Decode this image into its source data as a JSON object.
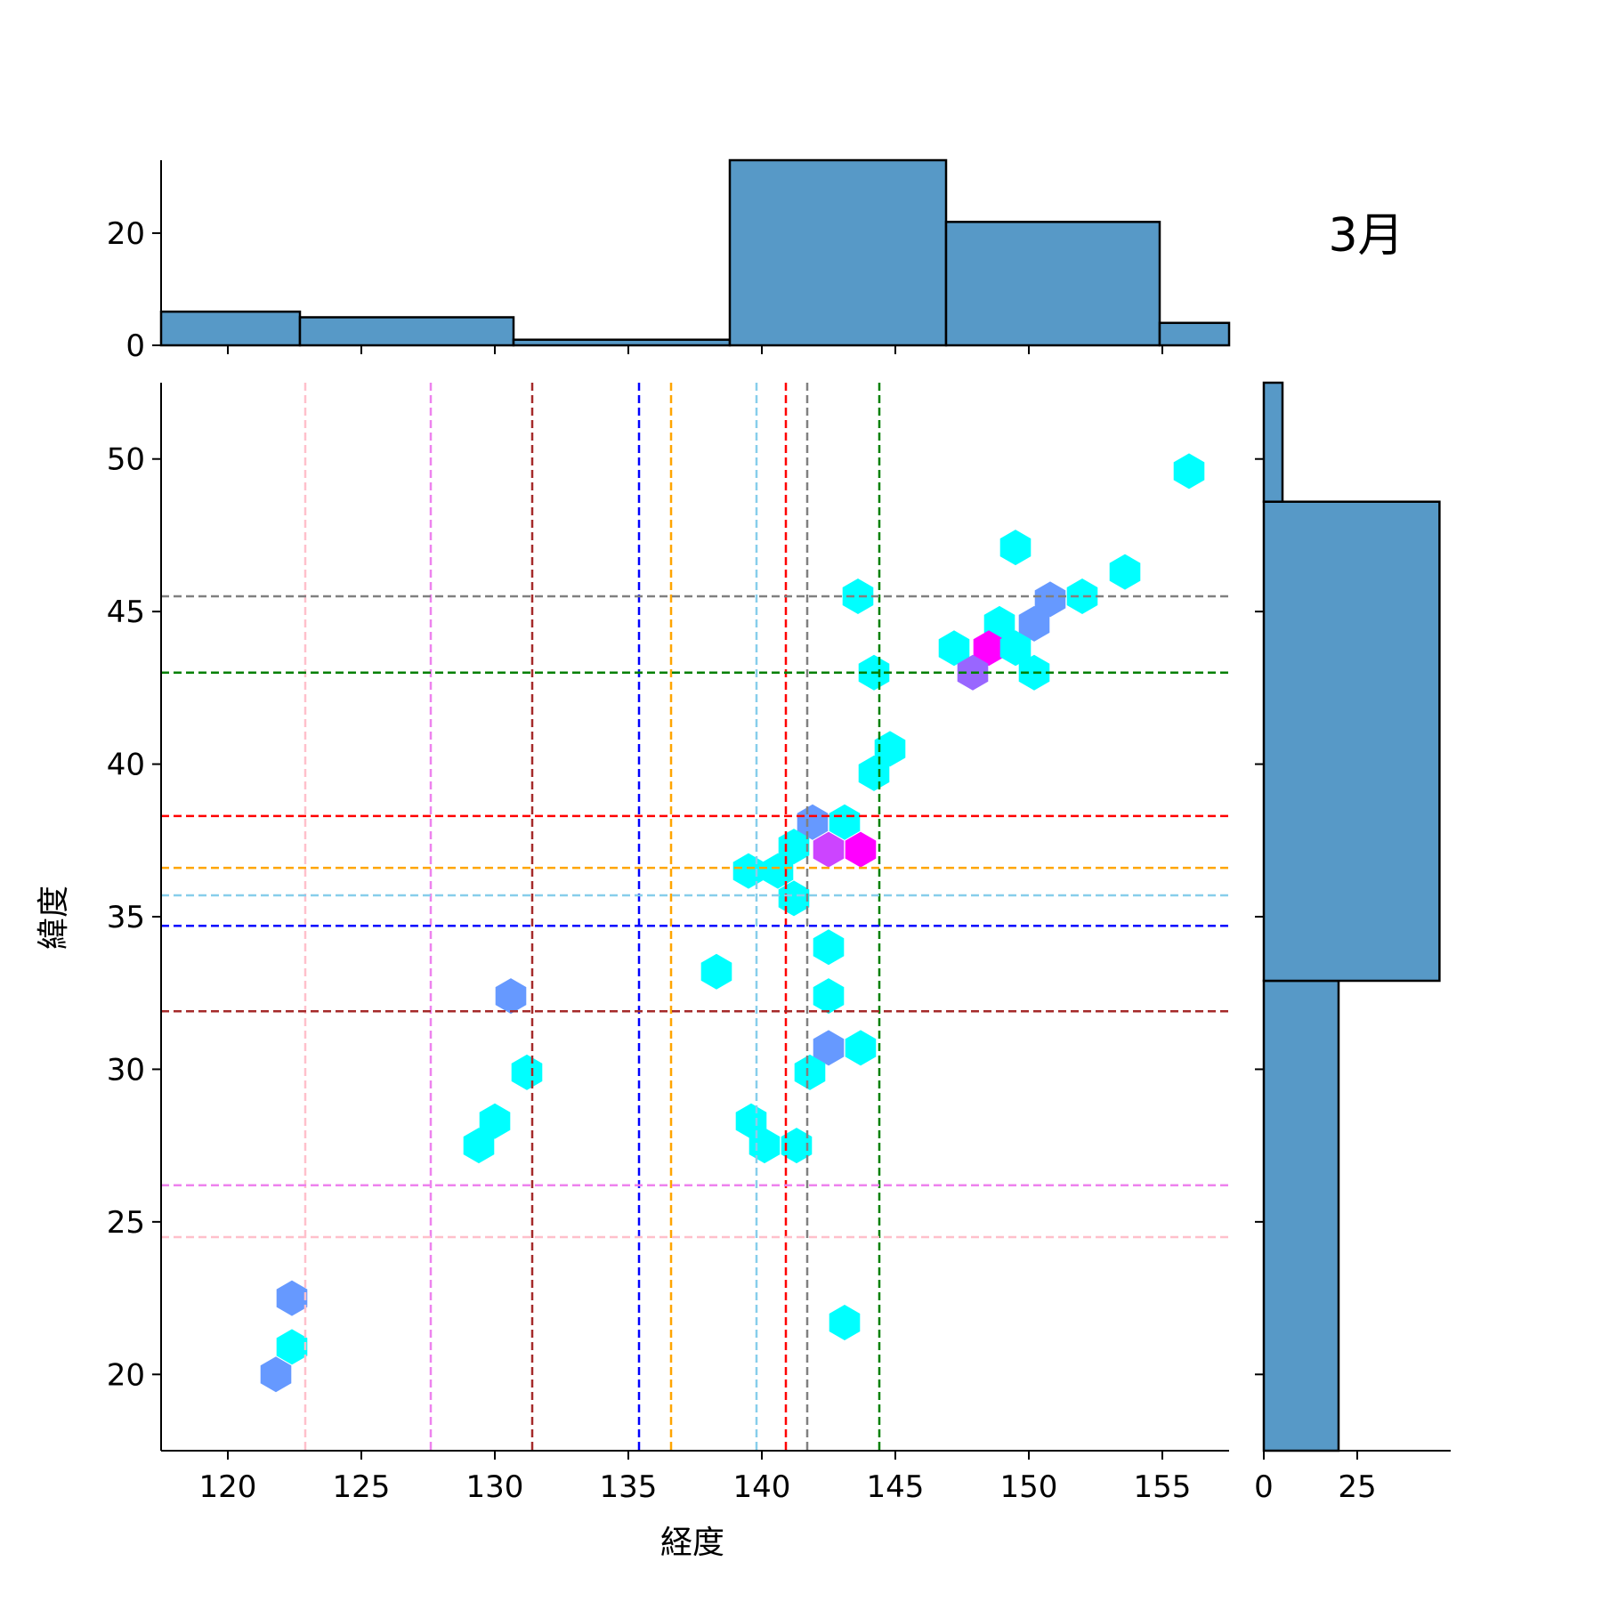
{
  "chart_data": {
    "type": "hexbin",
    "title": "3月",
    "xlabel": "経度",
    "ylabel": "緯度",
    "xlim": [
      117.5,
      157.5
    ],
    "ylim": [
      17.5,
      52.5
    ],
    "xticks": [
      "120",
      "125",
      "130",
      "135",
      "140",
      "145",
      "150",
      "155"
    ],
    "yticks": [
      "20",
      "25",
      "30",
      "35",
      "40",
      "45",
      "50"
    ],
    "top_hist": {
      "yticks": [
        "0",
        "20"
      ],
      "ymax": 33,
      "bins": [
        {
          "x0": 117.5,
          "x1": 122.7,
          "count": 6
        },
        {
          "x0": 122.7,
          "x1": 130.7,
          "count": 5
        },
        {
          "x0": 130.7,
          "x1": 138.8,
          "count": 1
        },
        {
          "x0": 138.8,
          "x1": 146.9,
          "count": 33
        },
        {
          "x0": 146.9,
          "x1": 154.9,
          "count": 22
        },
        {
          "x0": 154.9,
          "x1": 157.5,
          "count": 4
        }
      ]
    },
    "right_hist": {
      "xticks": [
        "0",
        "25"
      ],
      "xmax": 50,
      "bins": [
        {
          "y0": 17.5,
          "y1": 32.9,
          "count": 20
        },
        {
          "y0": 32.9,
          "y1": 48.6,
          "count": 47
        },
        {
          "y0": 48.6,
          "y1": 52.5,
          "count": 5
        }
      ]
    },
    "vlines": [
      {
        "x": 122.9,
        "color": "pink"
      },
      {
        "x": 127.6,
        "color": "violet"
      },
      {
        "x": 131.4,
        "color": "brown"
      },
      {
        "x": 135.4,
        "color": "blue"
      },
      {
        "x": 136.6,
        "color": "orange"
      },
      {
        "x": 139.8,
        "color": "skyblue"
      },
      {
        "x": 140.9,
        "color": "red"
      },
      {
        "x": 141.7,
        "color": "gray"
      },
      {
        "x": 144.4,
        "color": "green"
      }
    ],
    "hlines": [
      {
        "y": 45.5,
        "color": "gray"
      },
      {
        "y": 43.0,
        "color": "green"
      },
      {
        "y": 38.3,
        "color": "red"
      },
      {
        "y": 36.6,
        "color": "orange"
      },
      {
        "y": 35.7,
        "color": "skyblue"
      },
      {
        "y": 34.7,
        "color": "blue"
      },
      {
        "y": 31.9,
        "color": "brown"
      },
      {
        "y": 26.2,
        "color": "violet"
      },
      {
        "y": 24.5,
        "color": "pink"
      }
    ],
    "hexbins": [
      {
        "x": 156.0,
        "y": 49.6,
        "color": "#00ffff"
      },
      {
        "x": 149.5,
        "y": 47.1,
        "color": "#00ffff"
      },
      {
        "x": 153.6,
        "y": 46.3,
        "color": "#00ffff"
      },
      {
        "x": 150.8,
        "y": 45.4,
        "color": "#6699ff"
      },
      {
        "x": 152.0,
        "y": 45.5,
        "color": "#00ffff"
      },
      {
        "x": 143.6,
        "y": 45.5,
        "color": "#00ffff"
      },
      {
        "x": 148.9,
        "y": 44.6,
        "color": "#00ffff"
      },
      {
        "x": 150.2,
        "y": 44.6,
        "color": "#6699ff"
      },
      {
        "x": 147.2,
        "y": 43.8,
        "color": "#00ffff"
      },
      {
        "x": 148.5,
        "y": 43.8,
        "color": "#ff00ff"
      },
      {
        "x": 149.5,
        "y": 43.8,
        "color": "#00ffff"
      },
      {
        "x": 147.9,
        "y": 43.0,
        "color": "#9966ff"
      },
      {
        "x": 150.2,
        "y": 43.0,
        "color": "#00ffff"
      },
      {
        "x": 144.2,
        "y": 43.0,
        "color": "#00ffff"
      },
      {
        "x": 144.8,
        "y": 40.5,
        "color": "#00ffff"
      },
      {
        "x": 144.2,
        "y": 39.7,
        "color": "#00ffff"
      },
      {
        "x": 141.9,
        "y": 38.1,
        "color": "#6699ff"
      },
      {
        "x": 143.1,
        "y": 38.1,
        "color": "#00ffff"
      },
      {
        "x": 141.2,
        "y": 37.3,
        "color": "#00ffff"
      },
      {
        "x": 142.5,
        "y": 37.2,
        "color": "#cc44ff"
      },
      {
        "x": 143.7,
        "y": 37.2,
        "color": "#ff00ff"
      },
      {
        "x": 139.5,
        "y": 36.5,
        "color": "#00ffff"
      },
      {
        "x": 140.6,
        "y": 36.5,
        "color": "#00ffff"
      },
      {
        "x": 141.2,
        "y": 35.6,
        "color": "#00ffff"
      },
      {
        "x": 142.5,
        "y": 34.0,
        "color": "#00ffff"
      },
      {
        "x": 138.3,
        "y": 33.2,
        "color": "#00ffff"
      },
      {
        "x": 130.6,
        "y": 32.4,
        "color": "#6699ff"
      },
      {
        "x": 142.5,
        "y": 32.4,
        "color": "#00ffff"
      },
      {
        "x": 142.5,
        "y": 30.7,
        "color": "#6699ff"
      },
      {
        "x": 143.7,
        "y": 30.7,
        "color": "#00ffff"
      },
      {
        "x": 131.2,
        "y": 29.9,
        "color": "#00ffff"
      },
      {
        "x": 141.8,
        "y": 29.9,
        "color": "#00ffff"
      },
      {
        "x": 130.0,
        "y": 28.3,
        "color": "#00ffff"
      },
      {
        "x": 139.6,
        "y": 28.3,
        "color": "#00ffff"
      },
      {
        "x": 129.4,
        "y": 27.5,
        "color": "#00ffff"
      },
      {
        "x": 140.1,
        "y": 27.5,
        "color": "#00ffff"
      },
      {
        "x": 141.3,
        "y": 27.5,
        "color": "#00ffff"
      },
      {
        "x": 122.4,
        "y": 22.5,
        "color": "#6699ff"
      },
      {
        "x": 143.1,
        "y": 21.7,
        "color": "#00ffff"
      },
      {
        "x": 122.4,
        "y": 20.9,
        "color": "#00ffff"
      },
      {
        "x": 121.8,
        "y": 20.0,
        "color": "#6699ff"
      }
    ],
    "hist_color": "#5799c7"
  }
}
